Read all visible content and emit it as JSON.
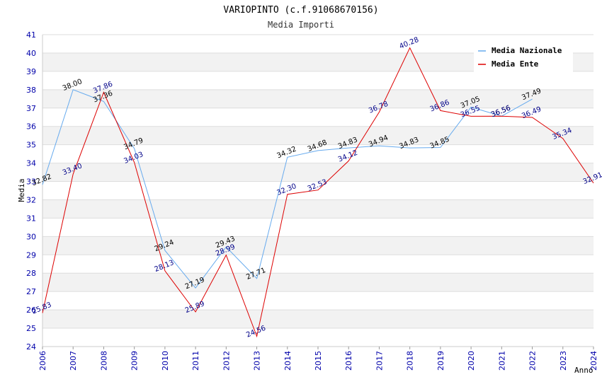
{
  "chart_data": {
    "type": "line",
    "title": "VARIOPINTO (c.f.91068670156)",
    "subtitle": "Media Importi",
    "xlabel": "Anno",
    "ylabel": "Media",
    "ylim": [
      24,
      41
    ],
    "x": [
      "2006",
      "2007",
      "2008",
      "2009",
      "2010",
      "2011",
      "2012",
      "2013",
      "2014",
      "2015",
      "2016",
      "2017",
      "2018",
      "2019",
      "2020",
      "2021",
      "2022",
      "2023",
      "2024"
    ],
    "grid": true,
    "legend_position": "top-right",
    "series": [
      {
        "name": "Media Nazionale",
        "color": "#66aaee",
        "label_color": "#000000",
        "values": [
          32.82,
          38.0,
          37.36,
          34.79,
          29.24,
          27.19,
          29.43,
          27.71,
          34.32,
          34.68,
          34.83,
          34.94,
          34.83,
          34.85,
          37.05,
          36.56,
          37.49,
          null,
          null
        ],
        "labels": [
          "32.82",
          "38.00",
          "37.36",
          "34.79",
          "29.24",
          "27.19",
          "29.43",
          "27.71",
          "34.32",
          "34.68",
          "34.83",
          "34.94",
          "34.83",
          "34.85",
          "37.05",
          "36.56",
          "37.49",
          "",
          ""
        ]
      },
      {
        "name": "Media Ente",
        "color": "#dd0000",
        "label_color": "#000088",
        "values": [
          25.83,
          33.4,
          37.86,
          34.03,
          28.13,
          25.89,
          28.99,
          24.56,
          32.3,
          32.53,
          34.12,
          36.78,
          40.28,
          36.86,
          36.55,
          36.56,
          36.49,
          35.34,
          32.91
        ],
        "labels": [
          "25.83",
          "33.40",
          "37.86",
          "34.03",
          "28.13",
          "25.89",
          "28.99",
          "24.56",
          "32.30",
          "32.53",
          "34.12",
          "36.78",
          "40.28",
          "36.86",
          "36.55",
          "36.56",
          "36.49",
          "35.34",
          "32.91"
        ]
      }
    ]
  }
}
